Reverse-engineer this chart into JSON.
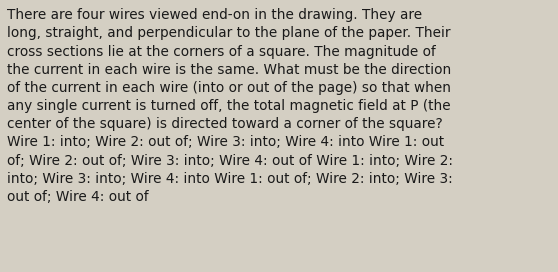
{
  "background_color": "#d4cfc3",
  "text_color": "#1a1a1a",
  "font_size": 9.8,
  "font_family": "DejaVu Sans",
  "lines": [
    "There are four wires viewed end-on in the drawing. They are",
    "long, straight, and perpendicular to the plane of the paper. Their",
    "cross sections lie at the corners of a square. The magnitude of",
    "the current in each wire is the same. What must be the direction",
    "of the current in each wire (into or out of the page) so that when",
    "any single current is turned off, the total magnetic field at P (the",
    "center of the square) is directed toward a corner of the square?",
    "Wire 1: into; Wire 2: out of; Wire 3: into; Wire 4: into Wire 1: out",
    "of; Wire 2: out of; Wire 3: into; Wire 4: out of Wire 1: into; Wire 2:",
    "into; Wire 3: into; Wire 4: into Wire 1: out of; Wire 2: into; Wire 3:",
    "out of; Wire 4: out of"
  ]
}
